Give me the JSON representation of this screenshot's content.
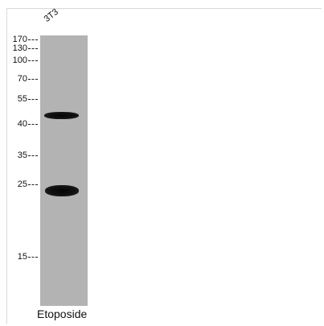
{
  "lane": {
    "label": "3T3"
  },
  "markers": [
    "170",
    "130",
    "100",
    "70",
    "55",
    "40",
    "35",
    "25",
    "15"
  ],
  "caption": "Etoposide",
  "colors": {
    "lane": "#b3b3b3",
    "band": "#0a0a0a",
    "background": "#ffffff"
  }
}
